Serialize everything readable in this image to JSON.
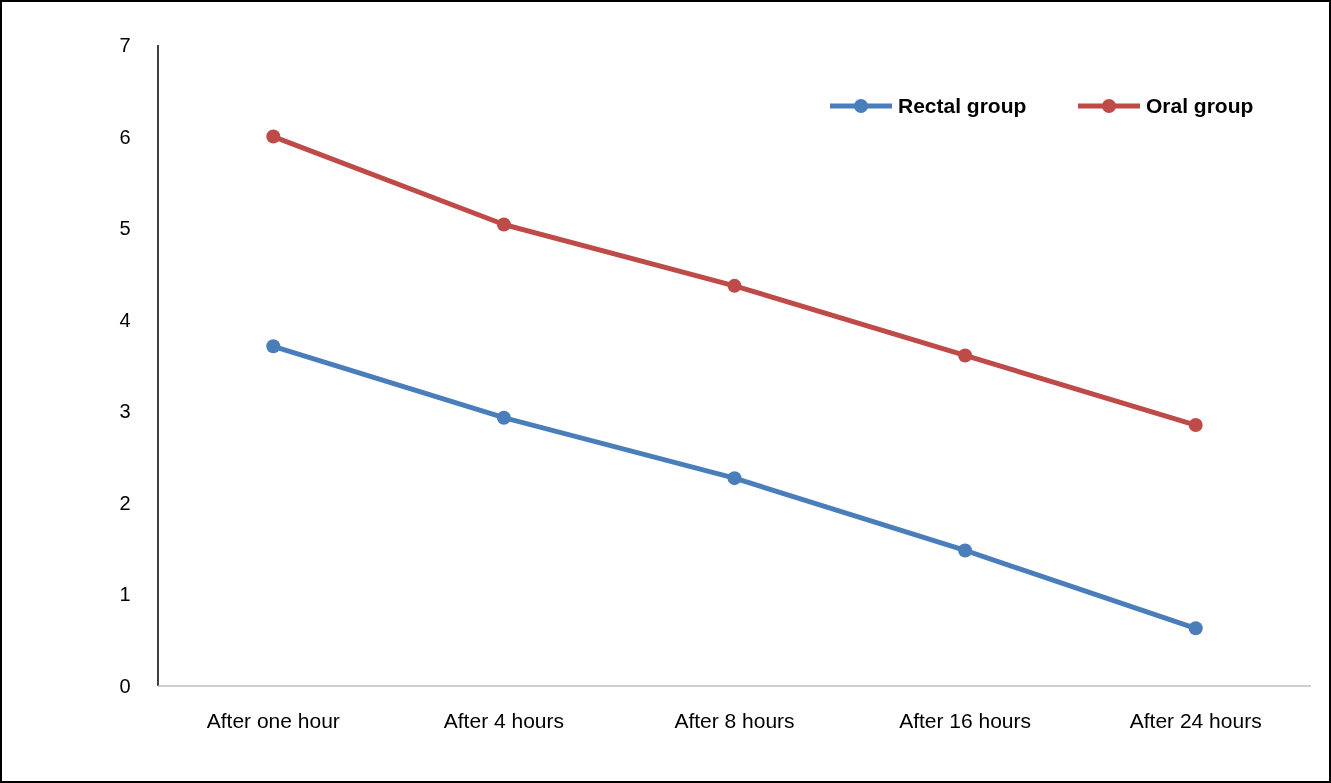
{
  "chart_data": {
    "type": "line",
    "categories": [
      "After one hour",
      "After 4 hours",
      "After 8 hours",
      "After 16 hours",
      "After 24 hours"
    ],
    "series": [
      {
        "name": "Rectal group",
        "color": "#4a7ebb",
        "values": [
          3.71,
          2.93,
          2.27,
          1.48,
          0.63
        ]
      },
      {
        "name": "Oral group",
        "color": "#be4b48",
        "values": [
          6.0,
          5.04,
          4.37,
          3.61,
          2.85
        ]
      }
    ],
    "ylim": [
      0,
      7
    ],
    "yticks": [
      0,
      1,
      2,
      3,
      4,
      5,
      6,
      7
    ],
    "grid": false,
    "legend": "top right",
    "marker": "circle",
    "line_style": "solid"
  }
}
